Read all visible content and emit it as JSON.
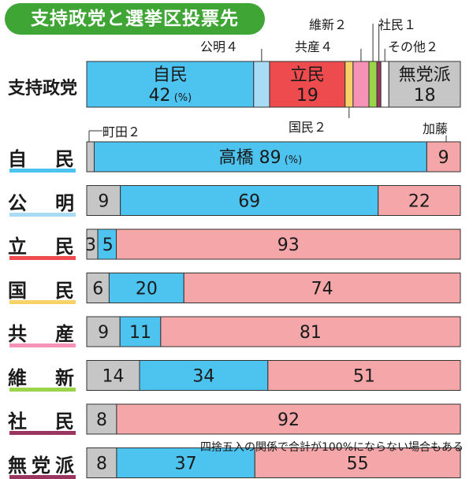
{
  "title": "支持政党と選挙区投票先",
  "footnote": "四捨五入の関係で合計が100%にならない場合もある",
  "colors": {
    "自民": "#4dc3ef",
    "公明": "#a8dcf4",
    "立民": "#ee4b4f",
    "国民": "#f7d367",
    "共産": "#f592b5",
    "維新": "#9ad44a",
    "社民": "#9b3560",
    "無党派": "#c6c6c6",
    "町田": "#c6c6c6",
    "高橋": "#4dc3ef",
    "加藤": "#f4a6a8",
    "title_bg": "#3fa535"
  },
  "chart_data": [
    {
      "type": "bar",
      "stacked": true,
      "orientation": "horizontal",
      "label": "支持政党",
      "unit": "(%)",
      "segments": [
        {
          "name": "自民",
          "value": 42,
          "label": "自民",
          "value_label": "42"
        },
        {
          "name": "公明",
          "value": 4,
          "annotation": "公明４"
        },
        {
          "name": "立民",
          "value": 19,
          "label": "立民",
          "value_label": "19"
        },
        {
          "name": "国民",
          "value": 2,
          "annotation": "国民２"
        },
        {
          "name": "共産",
          "value": 4,
          "annotation": "共産４"
        },
        {
          "name": "維新",
          "value": 2,
          "annotation": "維新２"
        },
        {
          "name": "社民",
          "value": 1,
          "annotation": "社民１"
        },
        {
          "name": "その他",
          "value": 2,
          "annotation": "その他２"
        },
        {
          "name": "無党派",
          "value": 18,
          "label": "無党派",
          "value_label": "18"
        }
      ]
    },
    {
      "type": "bar",
      "stacked": true,
      "orientation": "horizontal",
      "candidates": [
        "町田",
        "高橋",
        "加藤"
      ],
      "candidate_annotations": {
        "町田": "町田２",
        "加藤": "加藤"
      },
      "unit": "(%)",
      "rows": [
        {
          "label": "自　民",
          "line_color": "#4dc3ef",
          "values": [
            2,
            89,
            9
          ],
          "labels": [
            "",
            "高橋 89",
            "9"
          ]
        },
        {
          "label": "公　明",
          "line_color": "#a8dcf4",
          "values": [
            9,
            69,
            22
          ],
          "labels": [
            "9",
            "69",
            "22"
          ]
        },
        {
          "label": "立　民",
          "line_color": "#ee4b4f",
          "values": [
            3,
            5,
            93
          ],
          "labels": [
            "3",
            "5",
            "93"
          ]
        },
        {
          "label": "国　民",
          "line_color": "#f7d367",
          "values": [
            6,
            20,
            74
          ],
          "labels": [
            "6",
            "20",
            "74"
          ]
        },
        {
          "label": "共　産",
          "line_color": "#f592b5",
          "values": [
            9,
            11,
            81
          ],
          "labels": [
            "9",
            "11",
            "81"
          ]
        },
        {
          "label": "維　新",
          "line_color": "#9ad44a",
          "values": [
            14,
            34,
            51
          ],
          "labels": [
            "14",
            "34",
            "51"
          ]
        },
        {
          "label": "社　民",
          "line_color": "#9b3560",
          "values": [
            8,
            0,
            92
          ],
          "labels": [
            "8",
            "",
            "92"
          ]
        },
        {
          "label": "無党派",
          "line_color": "#9b3560",
          "values": [
            8,
            37,
            55
          ],
          "labels": [
            "8",
            "37",
            "55"
          ]
        }
      ]
    }
  ]
}
